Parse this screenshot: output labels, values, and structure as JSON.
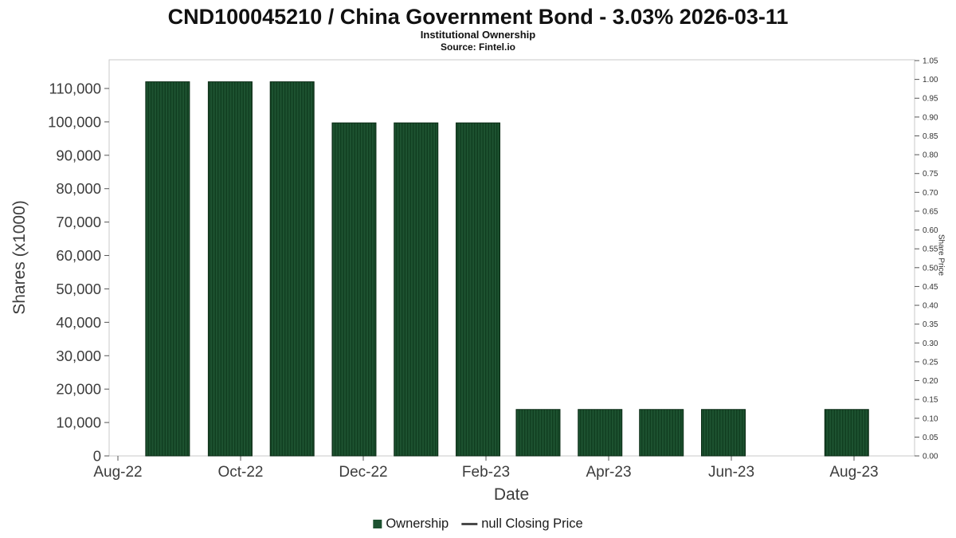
{
  "chart_data": {
    "type": "bar",
    "title": "CND100045210 / China Government Bond - 3.03% 2026-03-11",
    "subtitle": "Institutional Ownership",
    "source": "Source: Fintel.io",
    "xlabel": "Date",
    "ylabel_left": "Shares (x1000)",
    "ylabel_right": "Share Price",
    "legend": {
      "ownership": "Ownership",
      "closing_price": "null Closing Price"
    },
    "colors": {
      "bar_fill": "#1d5230",
      "bar_stripe": "#0e3a1d",
      "bar_border": "#0a2a14",
      "axis_border": "#c9c9c9",
      "tick_mark": "#555555",
      "price_line": "#4a4a4a"
    },
    "x_ticks": [
      {
        "label": "Aug-22",
        "month_offset": 0
      },
      {
        "label": "Oct-22",
        "month_offset": 2
      },
      {
        "label": "Dec-22",
        "month_offset": 4
      },
      {
        "label": "Feb-23",
        "month_offset": 6
      },
      {
        "label": "Apr-23",
        "month_offset": 8
      },
      {
        "label": "Jun-23",
        "month_offset": 10
      },
      {
        "label": "Aug-23",
        "month_offset": 12
      }
    ],
    "y_left": {
      "min": 0,
      "tick_max": 110000,
      "step": 10000,
      "plot_top_value": 118600
    },
    "y_right": {
      "min": 0,
      "max": 1.05,
      "step": 0.05
    },
    "grid": false,
    "legend_position": "bottom-center",
    "bars": [
      {
        "date": "Sep-22",
        "shares_x1000": 112000,
        "month_offset": 0.81
      },
      {
        "date": "Oct-22",
        "shares_x1000": 112000,
        "month_offset": 1.83
      },
      {
        "date": "Nov-22",
        "shares_x1000": 112000,
        "month_offset": 2.84
      },
      {
        "date": "Dec-22",
        "shares_x1000": 99700,
        "month_offset": 3.85
      },
      {
        "date": "Jan-23",
        "shares_x1000": 99700,
        "month_offset": 4.86
      },
      {
        "date": "Feb-23",
        "shares_x1000": 99700,
        "month_offset": 5.87
      },
      {
        "date": "Mar-23",
        "shares_x1000": 13900,
        "month_offset": 6.85
      },
      {
        "date": "Apr-23",
        "shares_x1000": 13900,
        "month_offset": 7.86
      },
      {
        "date": "May-23",
        "shares_x1000": 13900,
        "month_offset": 8.86
      },
      {
        "date": "Jun-23",
        "shares_x1000": 13900,
        "month_offset": 9.87
      },
      {
        "date": "Aug-23",
        "shares_x1000": 13900,
        "month_offset": 11.88
      }
    ],
    "closing_price_series": null
  }
}
